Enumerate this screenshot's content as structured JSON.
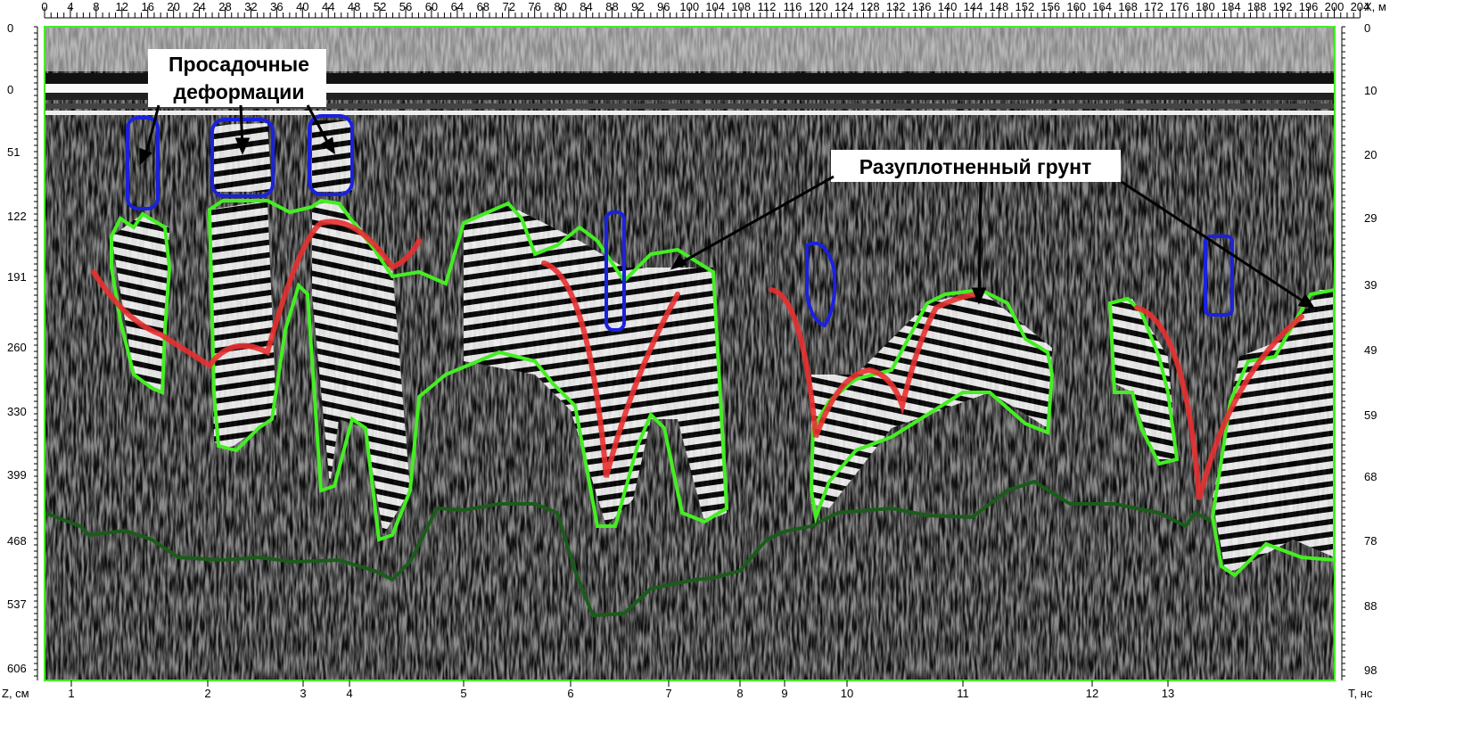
{
  "top_axis": {
    "labels": [
      "0",
      "4",
      "8",
      "12",
      "16",
      "20",
      "24",
      "28",
      "32",
      "36",
      "40",
      "44",
      "48",
      "52",
      "56",
      "60",
      "64",
      "68",
      "72",
      "76",
      "80",
      "84",
      "88",
      "92",
      "96",
      "100",
      "104",
      "108",
      "112",
      "116",
      "120",
      "124",
      "128",
      "132",
      "136",
      "140",
      "144",
      "148",
      "152",
      "156",
      "160",
      "164",
      "168",
      "172",
      "176",
      "180",
      "184",
      "188",
      "192",
      "196",
      "200",
      "204"
    ],
    "unit": "X, м"
  },
  "left_axis": {
    "labels": [
      "0",
      "0",
      "51",
      "122",
      "191",
      "260",
      "330",
      "399",
      "468",
      "537",
      "606"
    ],
    "unit": "Z, см"
  },
  "right_axis": {
    "labels": [
      "0",
      "10",
      "20",
      "29",
      "39",
      "49",
      "59",
      "68",
      "78",
      "88",
      "98"
    ],
    "unit": "T, нс"
  },
  "bottom_axis": {
    "labels": [
      "1",
      "2",
      "3",
      "4",
      "5",
      "6",
      "7",
      "8",
      "9",
      "10",
      "11",
      "12",
      "13"
    ]
  },
  "annotations": {
    "subsidence": [
      "Просадочные",
      "деформации"
    ],
    "loose_soil": "Разуплотненный грунт"
  }
}
